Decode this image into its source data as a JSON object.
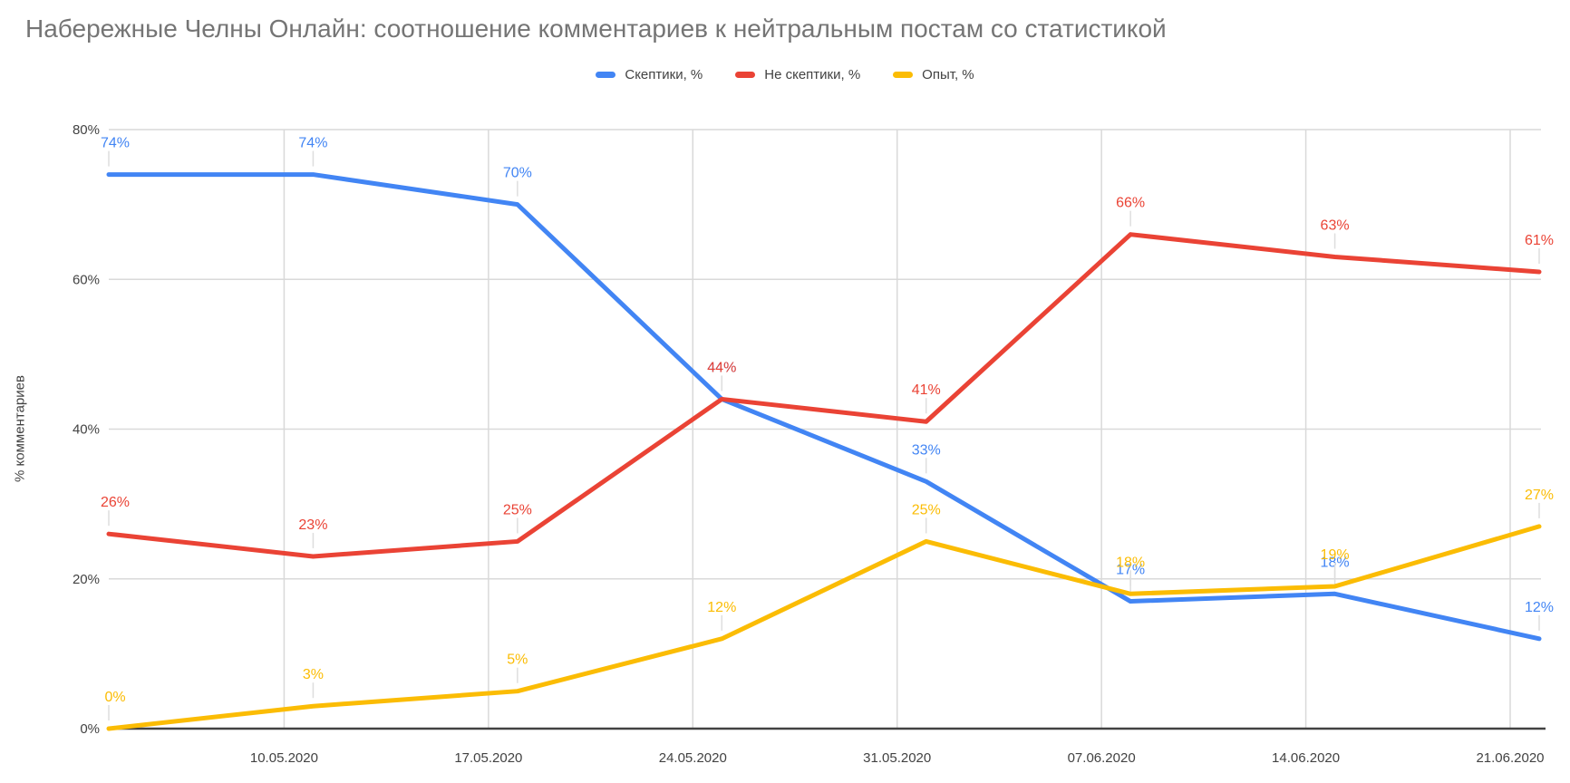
{
  "title": "Набережные Челны Онлайн: соотношение комментариев к нейтральным постам со статистикой",
  "y_axis_title": "% комментариев",
  "legend": {
    "items": [
      {
        "label": "Скептики, %",
        "color": "#4285F4"
      },
      {
        "label": "Не скептики, %",
        "color": "#EA4335"
      },
      {
        "label": "Опыт, %",
        "color": "#FBBC04"
      }
    ]
  },
  "chart_data": {
    "type": "line",
    "title": "Набережные Челны Онлайн: соотношение комментариев к нейтральным постам со статистикой",
    "xlabel": "",
    "ylabel": "% комментариев",
    "ylim": [
      0,
      80
    ],
    "y_ticks": [
      0,
      20,
      40,
      60,
      80
    ],
    "y_tick_suffix": "%",
    "grid": true,
    "legend_position": "top",
    "num_points": 8,
    "first_point_unlabeled": true,
    "x_tick_labels": [
      "10.05.2020",
      "17.05.2020",
      "24.05.2020",
      "31.05.2020",
      "07.06.2020",
      "14.06.2020",
      "21.06.2020"
    ],
    "data_label_suffix": "%",
    "series": [
      {
        "name": "Скептики, %",
        "color": "#4285F4",
        "values": [
          74,
          74,
          70,
          44,
          33,
          17,
          18,
          12
        ]
      },
      {
        "name": "Не скептики, %",
        "color": "#EA4335",
        "values": [
          26,
          23,
          25,
          44,
          41,
          66,
          63,
          61
        ]
      },
      {
        "name": "Опыт, %",
        "color": "#FBBC04",
        "values": [
          0,
          3,
          5,
          12,
          25,
          18,
          19,
          27
        ]
      }
    ]
  },
  "colors": {
    "title_text": "#757575",
    "axis_text": "#424242",
    "gridline": "#d9d9d9",
    "axis_line": "#424242",
    "leader_line": "#dedede",
    "background": "#ffffff"
  }
}
